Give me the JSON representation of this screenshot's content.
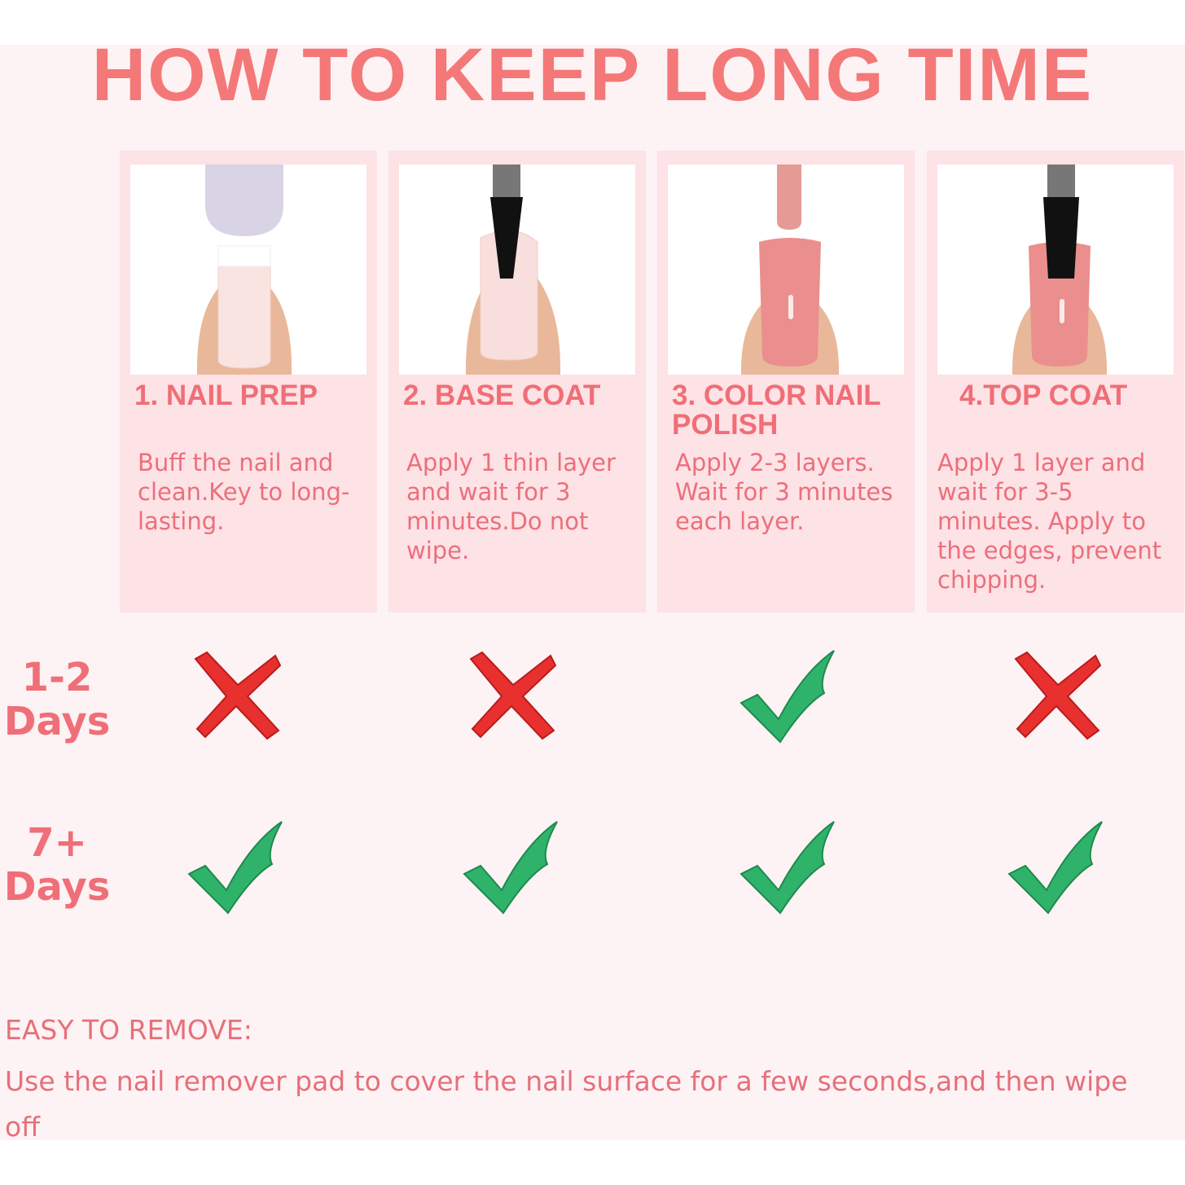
{
  "title": "HOW TO KEEP LONG TIME",
  "steps": [
    {
      "heading": "1. NAIL PREP",
      "text": "Buff the nail and clean.Key to long-lasting."
    },
    {
      "heading": "2. BASE COAT",
      "text": "Apply 1 thin layer and wait for 3 minutes.Do not wipe."
    },
    {
      "heading": "3. COLOR NAIL POLISH",
      "text": "Apply 2-3 layers. Wait for 3 minutes each layer."
    },
    {
      "heading": "4.TOP COAT",
      "text": "Apply 1 layer and wait for 3-5 minutes. Apply to the edges, prevent chipping."
    }
  ],
  "rows": [
    {
      "label_num": "1-2",
      "label_unit": "Days",
      "marks": [
        "cross-icon",
        "cross-icon",
        "check-icon",
        "cross-icon"
      ]
    },
    {
      "label_num": "7+",
      "label_unit": "Days",
      "marks": [
        "check-icon",
        "check-icon",
        "check-icon",
        "check-icon"
      ]
    }
  ],
  "remove": {
    "title": "EASY TO REMOVE:",
    "text": "Use the nail remover pad to cover the nail surface for a few seconds,and then wipe off"
  },
  "colors": {
    "accent": "#f47878",
    "check": "#2fb36a",
    "cross": "#e8302e",
    "card": "#fde2e6",
    "background": "#fdf2f4"
  }
}
